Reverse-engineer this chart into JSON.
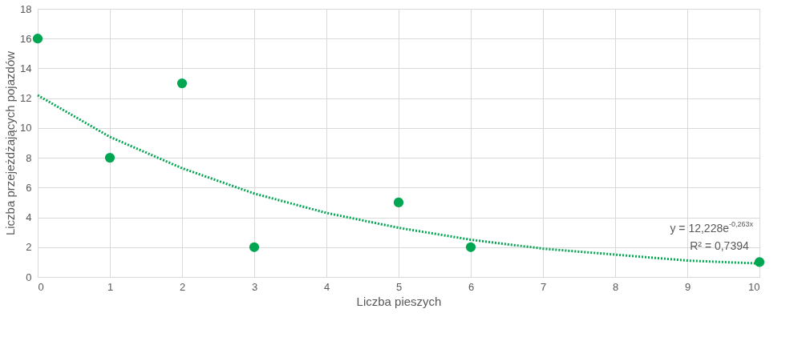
{
  "chart_data": {
    "type": "scatter",
    "xlabel": "Liczba pieszych",
    "ylabel": "Liczba przejeżdżających pojazdów",
    "xlim": [
      0,
      10
    ],
    "xticks": [
      0,
      1,
      2,
      3,
      4,
      5,
      6,
      7,
      8,
      9,
      10
    ],
    "ylim": [
      0,
      18
    ],
    "yticks": [
      0,
      2,
      4,
      6,
      8,
      10,
      12,
      14,
      16,
      18
    ],
    "grid": true,
    "series": [
      {
        "color": "#00a651",
        "marker": "circle",
        "x": [
          0,
          1,
          2,
          3,
          5,
          6,
          10
        ],
        "values": [
          16,
          8,
          13,
          2,
          5,
          2,
          1
        ]
      },
      {
        "type": "line",
        "color": "#00a651",
        "marker": "none",
        "line_style": "dotted",
        "x": [
          0,
          1,
          2,
          3,
          4,
          5,
          6,
          7,
          8,
          9,
          10
        ],
        "values": [
          12.2,
          9.4,
          7.3,
          5.6,
          4.3,
          3.3,
          2.5,
          1.9,
          1.5,
          1.1,
          0.9
        ]
      }
    ],
    "annotations": [
      "y = 12,228e$^{-0,263x}$",
      "R² = 0,7394"
    ]
  }
}
